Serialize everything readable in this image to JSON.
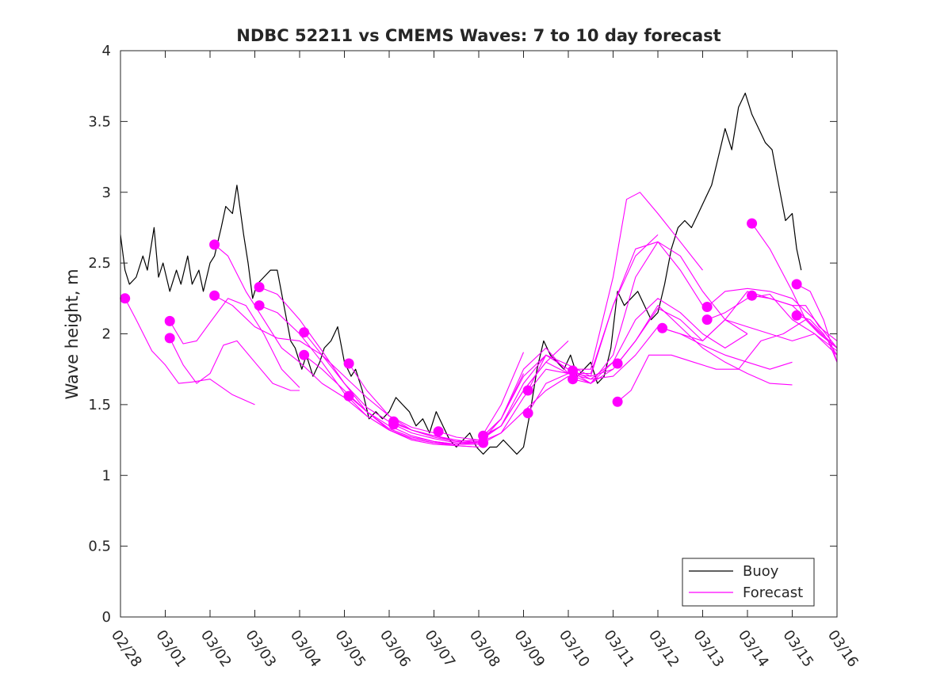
{
  "chart_data": {
    "type": "line",
    "title": "NDBC 52211 vs CMEMS Waves: 7 to 10 day forecast",
    "xlabel": "",
    "ylabel": "Wave height, m",
    "xlim": [
      0,
      16
    ],
    "ylim": [
      0,
      4
    ],
    "x_ticks": [
      0,
      1,
      2,
      3,
      4,
      5,
      6,
      7,
      8,
      9,
      10,
      11,
      12,
      13,
      14,
      15,
      16
    ],
    "x_tick_labels": [
      "02/28",
      "03/01",
      "03/02",
      "03/03",
      "03/04",
      "03/05",
      "03/06",
      "03/07",
      "03/08",
      "03/09",
      "03/10",
      "03/11",
      "03/12",
      "03/13",
      "03/14",
      "03/15",
      "03/16"
    ],
    "y_ticks": [
      0,
      0.5,
      1,
      1.5,
      2,
      2.5,
      3,
      3.5,
      4
    ],
    "y_tick_labels": [
      "0",
      "0.5",
      "1",
      "1.5",
      "2",
      "2.5",
      "3",
      "3.5",
      "4"
    ],
    "grid": false,
    "legend_position": "bottom-right",
    "colors": {
      "buoy": "#000000",
      "forecast": "#ff00ff",
      "axes": "#262626"
    },
    "series": [
      {
        "name": "Buoy",
        "role": "buoy",
        "x": [
          0.0,
          0.1,
          0.2,
          0.35,
          0.5,
          0.6,
          0.75,
          0.85,
          0.95,
          1.1,
          1.25,
          1.35,
          1.5,
          1.6,
          1.75,
          1.85,
          2.0,
          2.1,
          2.25,
          2.35,
          2.5,
          2.6,
          2.75,
          2.85,
          2.95,
          3.05,
          3.2,
          3.35,
          3.5,
          3.65,
          3.8,
          3.9,
          4.05,
          4.15,
          4.3,
          4.45,
          4.55,
          4.7,
          4.85,
          5.0,
          5.15,
          5.25,
          5.4,
          5.55,
          5.7,
          5.85,
          6.0,
          6.15,
          6.3,
          6.45,
          6.6,
          6.75,
          6.9,
          7.05,
          7.2,
          7.35,
          7.5,
          7.65,
          7.8,
          7.95,
          8.1,
          8.25,
          8.4,
          8.55,
          8.7,
          8.85,
          9.0,
          9.15,
          9.3,
          9.45,
          9.6,
          9.75,
          9.9,
          10.05,
          10.2,
          10.35,
          10.5,
          10.65,
          10.8,
          10.95,
          11.1,
          11.25,
          11.4,
          11.55,
          11.7,
          11.85,
          12.0,
          12.15,
          12.3,
          12.45,
          12.6,
          12.75,
          12.9,
          13.05,
          13.2,
          13.35,
          13.5,
          13.65,
          13.8,
          13.95,
          14.1,
          14.25,
          14.4,
          14.55,
          14.7,
          14.85,
          15.0,
          15.1,
          15.2
        ],
        "values": [
          2.7,
          2.45,
          2.35,
          2.4,
          2.55,
          2.45,
          2.75,
          2.4,
          2.5,
          2.3,
          2.45,
          2.35,
          2.55,
          2.35,
          2.45,
          2.3,
          2.5,
          2.55,
          2.75,
          2.9,
          2.85,
          3.05,
          2.7,
          2.5,
          2.25,
          2.35,
          2.4,
          2.45,
          2.45,
          2.2,
          1.95,
          1.9,
          1.75,
          1.85,
          1.7,
          1.8,
          1.9,
          1.95,
          2.05,
          1.8,
          1.7,
          1.75,
          1.6,
          1.4,
          1.45,
          1.4,
          1.45,
          1.55,
          1.5,
          1.45,
          1.35,
          1.4,
          1.3,
          1.45,
          1.35,
          1.25,
          1.2,
          1.25,
          1.3,
          1.2,
          1.15,
          1.2,
          1.2,
          1.25,
          1.2,
          1.15,
          1.2,
          1.45,
          1.75,
          1.95,
          1.85,
          1.8,
          1.75,
          1.85,
          1.7,
          1.75,
          1.8,
          1.65,
          1.7,
          1.9,
          2.3,
          2.2,
          2.25,
          2.3,
          2.2,
          2.1,
          2.15,
          2.35,
          2.6,
          2.75,
          2.8,
          2.75,
          2.85,
          2.95,
          3.05,
          3.25,
          3.45,
          3.3,
          3.6,
          3.7,
          3.55,
          3.45,
          3.35,
          3.3,
          3.05,
          2.8,
          2.85,
          2.6,
          2.45
        ]
      },
      {
        "name": "Forecast",
        "role": "forecast",
        "x": [
          0.1,
          0.35,
          0.7,
          1.0,
          1.3,
          1.6,
          2.0,
          2.5,
          3.0
        ],
        "values": [
          2.25,
          2.1,
          1.88,
          1.78,
          1.65,
          1.66,
          1.68,
          1.57,
          1.5
        ]
      },
      {
        "name": "Forecast",
        "role": "forecast",
        "x": [
          1.1,
          1.4,
          1.7,
          2.0,
          2.4,
          2.8,
          3.2,
          3.6,
          4.0
        ],
        "values": [
          2.09,
          1.93,
          1.95,
          2.08,
          2.25,
          2.2,
          2.0,
          1.75,
          1.62
        ]
      },
      {
        "name": "Forecast",
        "role": "forecast",
        "x": [
          1.1,
          1.4,
          1.7,
          2.0,
          2.3,
          2.6,
          3.0,
          3.4,
          3.8,
          4.0
        ],
        "values": [
          1.97,
          1.78,
          1.65,
          1.72,
          1.92,
          1.95,
          1.8,
          1.65,
          1.6,
          1.6
        ]
      },
      {
        "name": "Forecast",
        "role": "forecast",
        "x": [
          2.1,
          2.4,
          2.8,
          3.2,
          3.6,
          4.0,
          4.5,
          5.0,
          5.5,
          6.0,
          6.5,
          7.0,
          7.5,
          8.0
        ],
        "values": [
          2.63,
          2.55,
          2.3,
          2.1,
          1.9,
          1.8,
          1.65,
          1.55,
          1.42,
          1.32,
          1.25,
          1.22,
          1.21,
          1.2
        ]
      },
      {
        "name": "Forecast",
        "role": "forecast",
        "x": [
          2.1,
          2.5,
          3.0,
          3.5,
          4.0,
          4.5,
          5.0,
          5.5,
          6.0,
          6.5,
          7.0
        ],
        "values": [
          2.27,
          2.2,
          2.05,
          1.97,
          1.95,
          1.85,
          1.7,
          1.55,
          1.42,
          1.34,
          1.3
        ]
      },
      {
        "name": "Forecast",
        "role": "forecast",
        "x": [
          3.1,
          3.5,
          4.0,
          4.5,
          5.0,
          5.5,
          6.0,
          6.5,
          7.0,
          7.5,
          8.0
        ],
        "values": [
          2.33,
          2.28,
          2.1,
          1.88,
          1.65,
          1.48,
          1.38,
          1.32,
          1.28,
          1.25,
          1.23
        ]
      },
      {
        "name": "Forecast",
        "role": "forecast",
        "x": [
          3.1,
          3.5,
          4.0,
          4.5,
          5.0,
          5.5,
          6.0,
          6.5,
          7.0,
          7.5,
          8.0
        ],
        "values": [
          2.2,
          2.15,
          2.0,
          1.8,
          1.58,
          1.42,
          1.32,
          1.26,
          1.23,
          1.21,
          1.2
        ]
      },
      {
        "name": "Forecast",
        "role": "forecast",
        "x": [
          4.1,
          4.5,
          5.0,
          5.5,
          6.0,
          6.5,
          7.0,
          7.5,
          8.0,
          8.5,
          9.0
        ],
        "values": [
          2.01,
          1.85,
          1.65,
          1.45,
          1.32,
          1.26,
          1.23,
          1.22,
          1.22,
          1.4,
          1.72
        ]
      },
      {
        "name": "Forecast",
        "role": "forecast",
        "x": [
          4.1,
          4.5,
          5.0,
          5.5,
          6.0,
          6.5,
          7.0,
          7.5,
          8.0,
          8.5,
          9.0
        ],
        "values": [
          1.85,
          1.75,
          1.6,
          1.45,
          1.33,
          1.27,
          1.24,
          1.22,
          1.24,
          1.5,
          1.87
        ]
      },
      {
        "name": "Forecast",
        "role": "forecast",
        "x": [
          5.1,
          5.5,
          6.0,
          6.5,
          7.0,
          7.5,
          8.0,
          8.5,
          9.0,
          9.5,
          10.0
        ],
        "values": [
          1.79,
          1.6,
          1.42,
          1.32,
          1.27,
          1.24,
          1.25,
          1.35,
          1.6,
          1.8,
          1.95
        ]
      },
      {
        "name": "Forecast",
        "role": "forecast",
        "x": [
          5.1,
          5.5,
          6.0,
          6.5,
          7.0,
          7.5,
          8.0,
          8.5,
          9.0,
          9.5,
          10.0
        ],
        "values": [
          1.56,
          1.45,
          1.35,
          1.28,
          1.24,
          1.22,
          1.23,
          1.3,
          1.45,
          1.6,
          1.7
        ]
      },
      {
        "name": "Forecast",
        "role": "forecast",
        "x": [
          6.1,
          6.5,
          7.0,
          7.5,
          8.0,
          8.5,
          9.0,
          9.5,
          10.0,
          10.5,
          11.0
        ],
        "values": [
          1.38,
          1.32,
          1.28,
          1.24,
          1.25,
          1.4,
          1.7,
          1.85,
          1.78,
          1.7,
          1.75
        ]
      },
      {
        "name": "Forecast",
        "role": "forecast",
        "x": [
          6.1,
          6.5,
          7.0,
          7.5,
          8.0,
          8.5,
          9.0,
          9.5,
          10.0,
          10.5,
          11.0
        ],
        "values": [
          1.36,
          1.3,
          1.26,
          1.23,
          1.24,
          1.35,
          1.6,
          1.8,
          1.72,
          1.68,
          1.8
        ]
      },
      {
        "name": "Forecast",
        "role": "forecast",
        "x": [
          7.1,
          7.5,
          8.0,
          8.5,
          9.0,
          9.5,
          10.0,
          10.5,
          11.0,
          11.5,
          12.0
        ],
        "values": [
          1.31,
          1.27,
          1.25,
          1.4,
          1.75,
          1.9,
          1.72,
          1.7,
          2.2,
          2.55,
          2.7
        ]
      },
      {
        "name": "Forecast",
        "role": "forecast",
        "x": [
          8.1,
          8.5,
          9.0,
          9.5,
          10.0,
          10.5,
          11.0,
          11.3,
          11.6,
          12.0,
          12.5,
          13.0
        ],
        "values": [
          1.28,
          1.35,
          1.65,
          1.85,
          1.75,
          1.75,
          2.4,
          2.95,
          3.0,
          2.85,
          2.65,
          2.45
        ]
      },
      {
        "name": "Forecast",
        "role": "forecast",
        "x": [
          8.1,
          8.5,
          9.0,
          9.5,
          10.0,
          10.5,
          11.0,
          11.5,
          12.0,
          12.5,
          13.0
        ],
        "values": [
          1.23,
          1.3,
          1.55,
          1.75,
          1.72,
          1.72,
          2.2,
          2.6,
          2.65,
          2.45,
          2.2
        ]
      },
      {
        "name": "Forecast",
        "role": "forecast",
        "x": [
          9.1,
          9.5,
          10.0,
          10.5,
          11.0,
          11.5,
          12.0,
          12.5,
          13.0,
          13.5,
          14.0
        ],
        "values": [
          1.6,
          1.85,
          1.75,
          1.65,
          1.85,
          2.4,
          2.65,
          2.55,
          2.3,
          2.1,
          2.0
        ]
      },
      {
        "name": "Forecast",
        "role": "forecast",
        "x": [
          9.1,
          9.5,
          10.0,
          10.5,
          11.0,
          11.5,
          12.0,
          12.5,
          13.0,
          13.5,
          14.0
        ],
        "values": [
          1.44,
          1.65,
          1.72,
          1.65,
          1.8,
          2.1,
          2.25,
          2.15,
          2.0,
          1.9,
          2.0
        ]
      },
      {
        "name": "Forecast",
        "role": "forecast",
        "x": [
          10.1,
          10.5,
          11.0,
          11.5,
          12.0,
          12.5,
          13.0,
          13.5,
          14.0,
          14.5,
          15.0
        ],
        "values": [
          1.74,
          1.68,
          1.7,
          1.85,
          2.05,
          2.0,
          1.92,
          1.85,
          1.8,
          1.75,
          1.8
        ]
      },
      {
        "name": "Forecast",
        "role": "forecast",
        "x": [
          10.1,
          10.5,
          11.0,
          11.5,
          12.0,
          12.5,
          13.0,
          13.5,
          14.0,
          14.5,
          15.0
        ],
        "values": [
          1.68,
          1.65,
          1.75,
          1.95,
          2.2,
          2.05,
          1.9,
          1.8,
          1.72,
          1.65,
          1.64
        ]
      },
      {
        "name": "Forecast",
        "role": "forecast",
        "x": [
          11.1,
          11.5,
          12.0,
          12.5,
          13.0,
          13.5,
          14.0,
          14.5,
          15.0,
          15.5,
          16.0
        ],
        "values": [
          1.79,
          1.95,
          2.18,
          2.1,
          1.95,
          2.1,
          2.05,
          2.0,
          1.95,
          2.0,
          1.88
        ]
      },
      {
        "name": "Forecast",
        "role": "forecast",
        "x": [
          11.1,
          11.4,
          11.8,
          12.3,
          12.8,
          13.3,
          13.8,
          14.3,
          14.8,
          15.3,
          15.8,
          16.0
        ],
        "values": [
          1.52,
          1.6,
          1.85,
          1.85,
          1.8,
          1.75,
          1.75,
          1.95,
          2.0,
          2.1,
          1.95,
          1.8
        ]
      },
      {
        "name": "Forecast",
        "role": "forecast",
        "x": [
          12.1,
          12.5,
          13.0,
          13.5,
          14.0,
          14.5,
          15.0,
          15.5,
          16.0
        ],
        "values": [
          2.04,
          2.0,
          1.95,
          2.1,
          2.3,
          2.25,
          2.2,
          2.05,
          1.9
        ]
      },
      {
        "name": "Forecast",
        "role": "forecast",
        "x": [
          13.1,
          13.5,
          14.0,
          14.5,
          15.0,
          15.5,
          16.0
        ],
        "values": [
          2.19,
          2.3,
          2.32,
          2.3,
          2.25,
          2.1,
          1.9
        ]
      },
      {
        "name": "Forecast",
        "role": "forecast",
        "x": [
          13.1,
          13.5,
          14.0,
          14.5,
          15.0,
          15.5,
          16.0
        ],
        "values": [
          2.1,
          2.15,
          2.25,
          2.28,
          2.1,
          2.0,
          1.85
        ]
      },
      {
        "name": "Forecast",
        "role": "forecast",
        "x": [
          14.1,
          14.5,
          15.0,
          15.3,
          15.6,
          16.0
        ],
        "values": [
          2.78,
          2.6,
          2.3,
          2.1,
          2.0,
          1.9
        ]
      },
      {
        "name": "Forecast",
        "role": "forecast",
        "x": [
          14.1,
          14.5,
          15.0,
          15.3,
          15.6,
          16.0
        ],
        "values": [
          2.27,
          2.25,
          2.2,
          2.2,
          2.05,
          1.95
        ]
      },
      {
        "name": "Forecast",
        "role": "forecast",
        "x": [
          15.1,
          15.4,
          15.7,
          16.0
        ],
        "values": [
          2.35,
          2.3,
          2.1,
          1.8
        ]
      },
      {
        "name": "Forecast",
        "role": "forecast",
        "x": [
          15.1,
          15.4,
          15.7,
          16.0
        ],
        "values": [
          2.13,
          2.1,
          2.0,
          1.85
        ]
      }
    ],
    "legend": [
      {
        "label": "Buoy",
        "role": "buoy"
      },
      {
        "label": "Forecast",
        "role": "forecast"
      }
    ]
  }
}
